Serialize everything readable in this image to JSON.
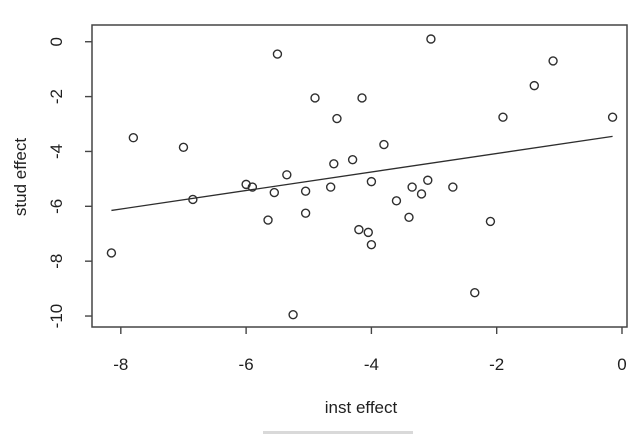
{
  "chart_data": {
    "type": "scatter",
    "title": "",
    "xlabel": "inst effect",
    "ylabel": "stud effect",
    "x_ticks": [
      -8,
      -6,
      -4,
      -2,
      0
    ],
    "y_ticks": [
      0,
      -2,
      -4,
      -6,
      -8,
      -10
    ],
    "xlim": [
      -8.46,
      0.08
    ],
    "ylim": [
      -10.4,
      0.61
    ],
    "grid": false,
    "legend_position": "none",
    "marker": "open-circle",
    "points": [
      [
        -8.15,
        -7.7
      ],
      [
        -7.8,
        -3.5
      ],
      [
        -7.0,
        -3.85
      ],
      [
        -6.85,
        -5.75
      ],
      [
        -6.0,
        -5.2
      ],
      [
        -5.9,
        -5.3
      ],
      [
        -5.55,
        -5.5
      ],
      [
        -5.05,
        -5.45
      ],
      [
        -5.65,
        -6.5
      ],
      [
        -5.05,
        -6.25
      ],
      [
        -5.35,
        -4.85
      ],
      [
        -5.5,
        -0.45
      ],
      [
        -5.25,
        -9.95
      ],
      [
        -4.9,
        -2.05
      ],
      [
        -4.55,
        -2.8
      ],
      [
        -4.15,
        -2.05
      ],
      [
        -4.6,
        -4.45
      ],
      [
        -4.3,
        -4.3
      ],
      [
        -3.8,
        -3.75
      ],
      [
        -4.65,
        -5.3
      ],
      [
        -4.0,
        -5.1
      ],
      [
        -3.6,
        -5.8
      ],
      [
        -3.35,
        -5.3
      ],
      [
        -3.2,
        -5.55
      ],
      [
        -3.1,
        -5.05
      ],
      [
        -2.7,
        -5.3
      ],
      [
        -3.4,
        -6.4
      ],
      [
        -4.2,
        -6.85
      ],
      [
        -4.05,
        -6.95
      ],
      [
        -4.0,
        -7.4
      ],
      [
        -3.05,
        0.1
      ],
      [
        -1.1,
        -0.7
      ],
      [
        -1.4,
        -1.6
      ],
      [
        -1.9,
        -2.75
      ],
      [
        -0.15,
        -2.75
      ],
      [
        -2.1,
        -6.55
      ],
      [
        -2.35,
        -9.15
      ]
    ],
    "fit_line": {
      "x1": -8.15,
      "y1": -6.15,
      "x2": -0.15,
      "y2": -3.45,
      "slope": 0.337,
      "intercept": -3.41
    }
  },
  "colors": {
    "background": "#ffffff",
    "axis": "#454545",
    "tick_text": "#1f1f1f",
    "marker_stroke": "#2e2e2e",
    "fit_line": "#2e2e2e",
    "bottom_artifact": "#d9d9d9"
  }
}
